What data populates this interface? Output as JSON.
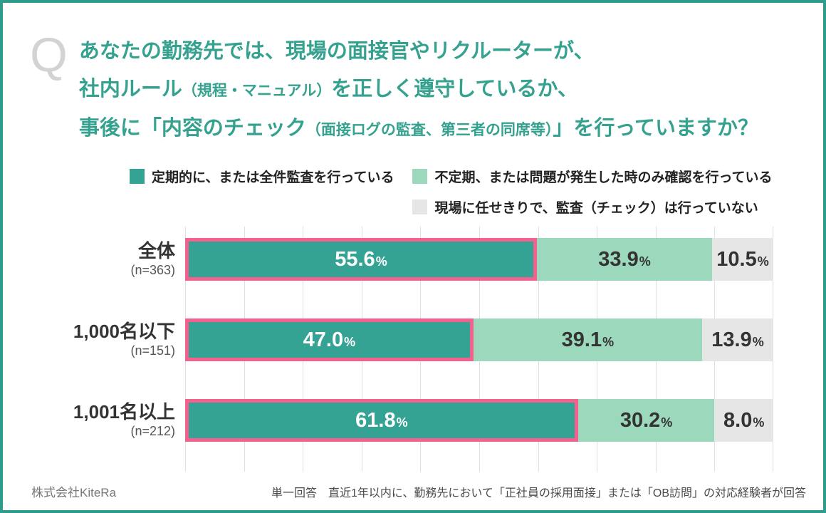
{
  "frame": {
    "border_color": "#2E9C8C",
    "background": "#FFFFFF"
  },
  "question": {
    "mark": "Q",
    "title_color": "#35A18F",
    "lines": [
      {
        "parts": [
          {
            "text": "あなたの勤務先では、現場の面接官やリクルーターが、",
            "size": "normal"
          }
        ]
      },
      {
        "parts": [
          {
            "text": "社内ルール",
            "size": "normal"
          },
          {
            "text": "（規程・マニュアル）",
            "size": "small"
          },
          {
            "text": "を正しく遵守しているか、",
            "size": "normal"
          }
        ]
      },
      {
        "parts": [
          {
            "text": "事後に「内容のチェック",
            "size": "normal"
          },
          {
            "text": "（面接ログの監査、第三者の同席等）",
            "size": "small"
          },
          {
            "text": "」を行っていますか？",
            "size": "normal"
          }
        ]
      }
    ]
  },
  "chart_data": {
    "type": "bar",
    "orientation": "horizontal",
    "stacked": true,
    "unit": "%",
    "xlim": [
      0,
      100
    ],
    "gridline_interval": 10,
    "grid": true,
    "legend_position": "top",
    "legend_columns": [
      [
        0
      ],
      [
        1,
        2
      ]
    ],
    "categories": [
      "全体",
      "1,000名以下",
      "1,001名以上"
    ],
    "sample_sizes": [
      "(n=363)",
      "(n=151)",
      "(n=212)"
    ],
    "series": [
      {
        "name": "定期的に、または全件監査を行っている",
        "color": "#35A394",
        "text_color": "#FFFFFF",
        "highlighted": true,
        "highlight_border": "#F4618E",
        "values": [
          55.6,
          47.0,
          61.8
        ],
        "display_widths": [
          59.8,
          49.0,
          66.8
        ]
      },
      {
        "name": "不定期、または問題が発生した時のみ確認を行っている",
        "color": "#9CD8BC",
        "text_color": "#333333",
        "highlighted": false,
        "values": [
          33.9,
          39.1,
          30.2
        ],
        "display_widths": [
          29.8,
          38.9,
          23.2
        ]
      },
      {
        "name": "現場に任せきりで、監査（チェック）は行っていない",
        "color": "#E6E6E6",
        "text_color": "#333333",
        "highlighted": false,
        "values": [
          10.5,
          13.9,
          8.0
        ],
        "display_widths": [
          10.4,
          12.1,
          10.0
        ]
      }
    ]
  },
  "footer": {
    "company": "株式会社KiteRa",
    "note": "単一回答　直近1年以内に、勤務先において「正社員の採用面接」または「OB訪問」の対応経験者が回答"
  }
}
